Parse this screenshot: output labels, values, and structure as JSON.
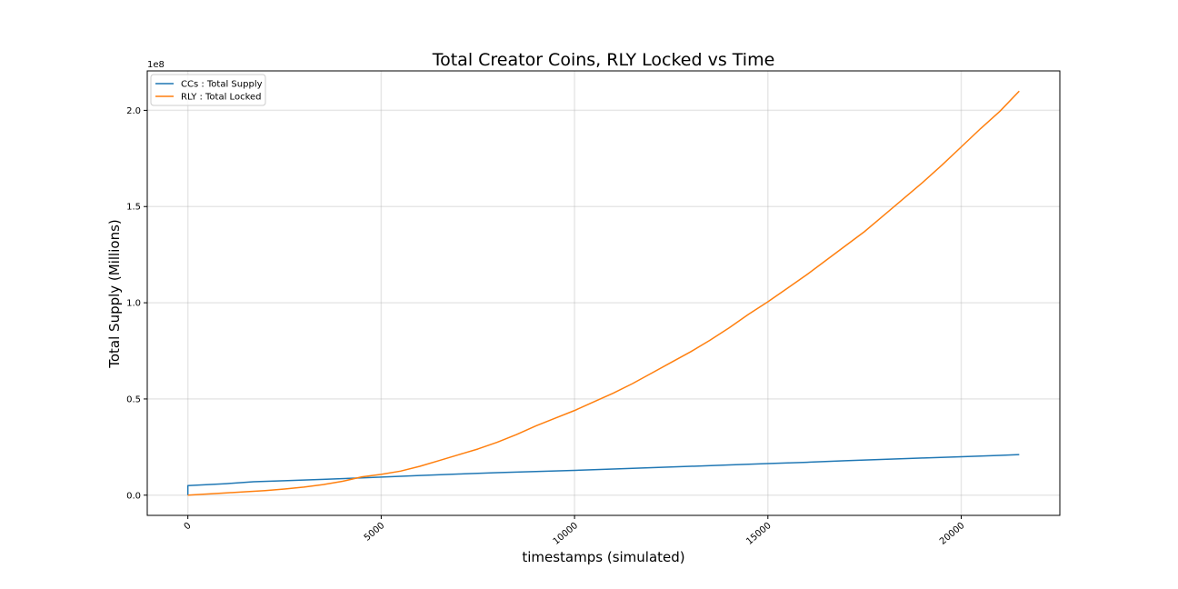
{
  "chart_data": {
    "type": "line",
    "title": "Total Creator Coins, RLY Locked vs Time",
    "xlabel": "timestamps (simulated)",
    "ylabel": "Total Supply (Millions)",
    "y_offset_label": "1e8",
    "xlim": [
      -1050,
      22550
    ],
    "ylim": [
      -10500000,
      220500000
    ],
    "x_ticks": [
      0,
      5000,
      10000,
      15000,
      20000
    ],
    "x_tick_labels": [
      "0",
      "5000",
      "10000",
      "15000",
      "20000"
    ],
    "y_ticks": [
      0,
      50000000,
      100000000,
      150000000,
      200000000
    ],
    "y_tick_labels": [
      "0.0",
      "0.5",
      "1.0",
      "1.5",
      "2.0"
    ],
    "grid": true,
    "legend_position": "upper-left",
    "series": [
      {
        "name": "CCs : Total Supply",
        "color": "#1f77b4",
        "x": [
          0,
          0,
          1000,
          1700,
          2500,
          3500,
          4500,
          5000,
          6000,
          7000,
          8000,
          9000,
          10000,
          11000,
          12000,
          13000,
          14000,
          15000,
          16000,
          17000,
          18000,
          19000,
          20000,
          21000,
          21500
        ],
        "y": [
          0,
          5000000,
          6000000,
          7000000,
          7500000,
          8200000,
          9000000,
          9400000,
          10200000,
          11000000,
          11700000,
          12300000,
          12900000,
          13600000,
          14300000,
          15000000,
          15700000,
          16400000,
          17100000,
          17900000,
          18600000,
          19300000,
          20000000,
          20700000,
          21100000
        ]
      },
      {
        "name": "RLY : Total Locked",
        "color": "#ff7f0e",
        "x": [
          0,
          500,
          1000,
          1500,
          2000,
          2500,
          3000,
          3500,
          4000,
          4500,
          5000,
          5500,
          6000,
          6500,
          7000,
          7500,
          8000,
          8500,
          9000,
          9500,
          10000,
          10500,
          11000,
          11500,
          12000,
          12500,
          13000,
          13500,
          14000,
          14500,
          15000,
          15500,
          16000,
          16500,
          17000,
          17500,
          18000,
          18500,
          19000,
          19500,
          20000,
          20500,
          21000,
          21500
        ],
        "y": [
          0,
          600000,
          1200000,
          1800000,
          2400000,
          3200000,
          4200000,
          5500000,
          7200000,
          9500000,
          10800000,
          12500000,
          15000000,
          18000000,
          21000000,
          24000000,
          27500000,
          31500000,
          36000000,
          40000000,
          44000000,
          48500000,
          53000000,
          58000000,
          63500000,
          69000000,
          74500000,
          80500000,
          87000000,
          94000000,
          100500000,
          107500000,
          114500000,
          122000000,
          129500000,
          137000000,
          145500000,
          154000000,
          162500000,
          171500000,
          181000000,
          190500000,
          199500000,
          210000000
        ]
      }
    ]
  }
}
